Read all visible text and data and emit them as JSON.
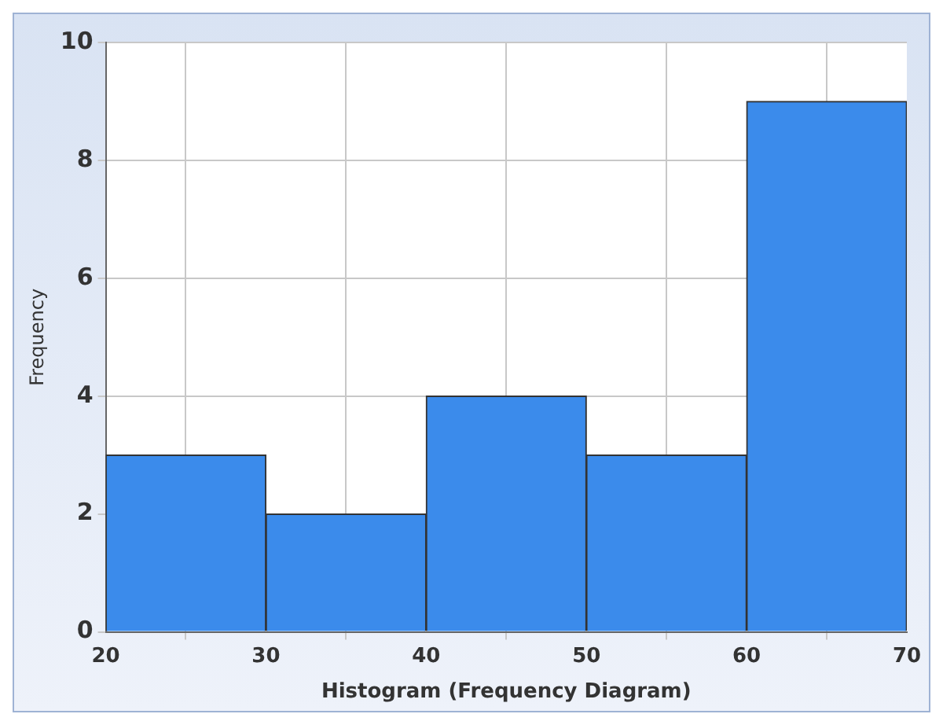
{
  "chart_data": {
    "type": "histogram",
    "xlabel": "Histogram (Frequency Diagram)",
    "ylabel": "Frequency",
    "bins": [
      20,
      30,
      40,
      50,
      60,
      70
    ],
    "values": [
      3,
      2,
      4,
      3,
      9
    ],
    "color": "#3b8beb",
    "xlim": [
      20,
      70
    ],
    "xticks": [
      20,
      30,
      40,
      50,
      60,
      70
    ],
    "ylim": [
      0,
      10
    ],
    "yticks": [
      0,
      2,
      4,
      6,
      8,
      10
    ],
    "grid": true,
    "legend": false
  }
}
